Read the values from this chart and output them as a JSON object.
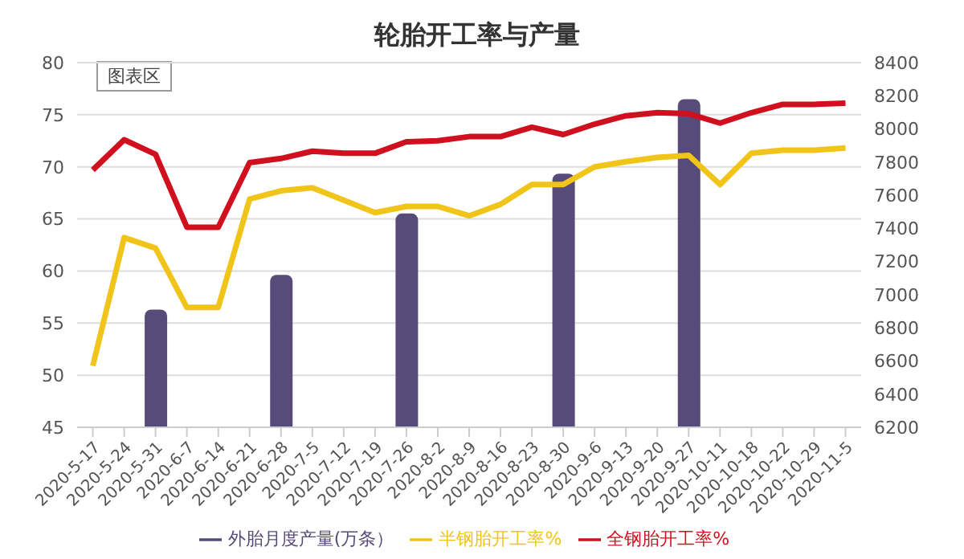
{
  "chart_data": {
    "type": "line",
    "title": "轮胎开工率与产量",
    "categories": [
      "2020-5-17",
      "2020-5-24",
      "2020-5-31",
      "2020-6-7",
      "2020-6-14",
      "2020-6-21",
      "2020-6-28",
      "2020-7-5",
      "2020-7-12",
      "2020-7-19",
      "2020-7-26",
      "2020-8-2",
      "2020-8-9",
      "2020-8-16",
      "2020-8-23",
      "2020-8-30",
      "2020-9-6",
      "2020-9-13",
      "2020-9-20",
      "2020-9-27",
      "2020-10-11",
      "2020-10-18",
      "2020-10-22",
      "2020-10-29",
      "2020-11-5"
    ],
    "series": [
      {
        "name": "外胎月度产量(万条）",
        "type": "bar",
        "axis": "y2",
        "color": "#574b7a",
        "values": [
          null,
          null,
          6910,
          null,
          null,
          null,
          7120,
          null,
          null,
          null,
          7490,
          null,
          null,
          null,
          null,
          7730,
          null,
          null,
          null,
          8180,
          null,
          null,
          null,
          null,
          null
        ]
      },
      {
        "name": "半钢胎开工率%",
        "color": "#f0c419",
        "values": [
          50.9,
          63.2,
          62.2,
          56.5,
          56.5,
          66.9,
          67.7,
          68.0,
          66.8,
          65.6,
          66.2,
          66.2,
          65.3,
          66.4,
          68.3,
          68.3,
          70.0,
          70.5,
          70.9,
          71.1,
          68.3,
          71.3,
          71.6,
          71.6,
          71.8
        ]
      },
      {
        "name": "全钢胎开工率%",
        "color": "#d0101e",
        "values": [
          69.7,
          72.6,
          71.2,
          64.2,
          64.2,
          70.4,
          70.8,
          71.5,
          71.3,
          71.3,
          72.4,
          72.5,
          72.9,
          72.9,
          73.8,
          73.1,
          74.1,
          74.9,
          75.2,
          75.1,
          74.2,
          75.2,
          76.0,
          76.0,
          76.1
        ]
      }
    ],
    "ylim": [
      45,
      80
    ],
    "yticks": [
      45,
      50,
      55,
      60,
      65,
      70,
      75,
      80
    ],
    "y2lim": [
      6200,
      8400
    ],
    "y2ticks": [
      6200,
      6400,
      6600,
      6800,
      7000,
      7200,
      7400,
      7600,
      7800,
      8000,
      8200,
      8400
    ],
    "grid": "y",
    "legend": "bottom",
    "marker": "none",
    "line_style": "solid",
    "annotations": [
      "图表区"
    ]
  }
}
